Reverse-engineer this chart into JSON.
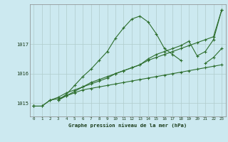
{
  "title": "Graphe pression niveau de la mer (hPa)",
  "bg_color": "#cce9f0",
  "grid_color": "#b0cccc",
  "line_color": "#2d6e2d",
  "xlim": [
    -0.5,
    23.5
  ],
  "ylim": [
    1014.55,
    1018.35
  ],
  "yticks": [
    1015,
    1016,
    1017
  ],
  "xticks": [
    0,
    1,
    2,
    3,
    4,
    5,
    6,
    7,
    8,
    9,
    10,
    11,
    12,
    13,
    14,
    15,
    16,
    17,
    18,
    19,
    20,
    21,
    22,
    23
  ],
  "series": [
    [
      1014.9,
      1014.9,
      1015.1,
      1015.15,
      1015.25,
      1015.35,
      1015.45,
      1015.5,
      1015.55,
      1015.6,
      1015.65,
      1015.7,
      1015.75,
      1015.8,
      1015.85,
      1015.9,
      1015.95,
      1016.0,
      1016.05,
      1016.1,
      1016.15,
      1016.2,
      1016.25,
      1016.3
    ],
    [
      1014.9,
      1014.9,
      1015.1,
      1015.2,
      1015.35,
      1015.45,
      1015.55,
      1015.65,
      1015.75,
      1015.85,
      1016.0,
      1016.1,
      1016.2,
      1016.3,
      1016.45,
      1016.55,
      1016.65,
      1016.75,
      1016.85,
      1016.95,
      1017.05,
      1017.15,
      1017.25,
      1018.15
    ],
    [
      1014.9,
      null,
      null,
      1015.1,
      1015.3,
      1015.6,
      1015.9,
      1016.15,
      1016.45,
      1016.75,
      1017.2,
      1017.55,
      1017.85,
      1017.95,
      1017.75,
      1017.35,
      1016.85,
      1016.65,
      1016.45,
      null,
      null,
      1016.35,
      1016.55,
      1016.85
    ],
    [
      1014.9,
      null,
      null,
      1015.1,
      1015.25,
      1015.4,
      1015.55,
      1015.7,
      1015.8,
      1015.9,
      1016.0,
      1016.1,
      1016.2,
      1016.3,
      1016.5,
      1016.65,
      1016.75,
      1016.85,
      1016.95,
      1017.1,
      1016.6,
      1016.75,
      1017.15,
      1018.15
    ]
  ]
}
